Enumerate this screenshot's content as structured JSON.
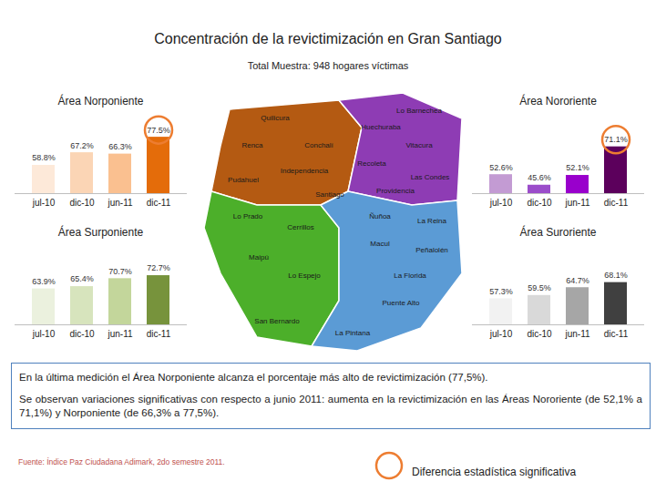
{
  "page": {
    "title": "Concentración de la revictimización en Gran Santiago",
    "subtitle": "Total Muestra: 948 hogares víctimas",
    "text": [
      "En la última medición el Área Norponiente alcanza el porcentaje más alto de revictimización (77,5%).",
      "Se observan variaciones significativas con respecto a junio 2011: aumenta en la revictimización en las Áreas Nororiente (de 52,1% a 71,1%) y Norponiente (de 66,3% a 77,5%)."
    ],
    "source": "Fuente: Índice Paz Ciudadana Adimark, 2do semestre 2011.",
    "legend_label": "Diferencia estadística significativa",
    "legend_color": "#ed7d31"
  },
  "map": {
    "zones": [
      {
        "color": "#b45a12",
        "comunas": [
          "Quilicura",
          "Renca",
          "Conchalí",
          "Pudahuel",
          "Independencia",
          "Santiago"
        ]
      },
      {
        "color": "#8e3cb4",
        "comunas": [
          "Lo Barnechea",
          "Huechuraba",
          "Vitacura",
          "Recoleta",
          "Las Condes",
          "Providencia"
        ]
      },
      {
        "color": "#4caf2a",
        "comunas": [
          "Lo Prado",
          "Cerrillos",
          "Maipú",
          "Lo Espejo",
          "San Bernardo"
        ]
      },
      {
        "color": "#5b9bd5",
        "comunas": [
          "Ñuñoa",
          "La Reina",
          "Macul",
          "Peñalolén",
          "La Florida",
          "Puente Alto",
          "La Pintana"
        ]
      }
    ]
  },
  "chart_data": [
    {
      "type": "bar",
      "title": "Área Norponiente",
      "categories": [
        "jul-10",
        "dic-10",
        "jun-11",
        "dic-11"
      ],
      "values": [
        58.8,
        67.2,
        66.3,
        77.5
      ],
      "value_labels": [
        "58.8%",
        "67.2%",
        "66.3%",
        "77.5%"
      ],
      "colors": [
        "#fde9d9",
        "#fbd5b5",
        "#fac090",
        "#e46c0a"
      ],
      "significant": [
        false,
        false,
        false,
        true
      ],
      "ylim": [
        40,
        80
      ],
      "data_labels": true,
      "tick_labels": "x"
    },
    {
      "type": "bar",
      "title": "Área Nororiente",
      "categories": [
        "jul-10",
        "dic-10",
        "jun-11",
        "dic-11"
      ],
      "values": [
        52.6,
        45.6,
        52.1,
        71.1
      ],
      "value_labels": [
        "52.6%",
        "45.6%",
        "52.1%",
        "71.1%"
      ],
      "colors": [
        "#c39bd3",
        "#9b4dca",
        "#9900cc",
        "#5c005c"
      ],
      "significant": [
        false,
        false,
        false,
        true
      ],
      "ylim": [
        40,
        80
      ],
      "data_labels": true,
      "tick_labels": "x"
    },
    {
      "type": "bar",
      "title": "Área Surponiente",
      "categories": [
        "jul-10",
        "dic-10",
        "jun-11",
        "dic-11"
      ],
      "values": [
        63.9,
        65.4,
        70.7,
        72.7
      ],
      "value_labels": [
        "63.9%",
        "65.4%",
        "70.7%",
        "72.7%"
      ],
      "colors": [
        "#ebf1de",
        "#d7e4bd",
        "#c3d69b",
        "#77933c"
      ],
      "significant": [
        false,
        false,
        false,
        false
      ],
      "ylim": [
        40,
        80
      ],
      "data_labels": true,
      "tick_labels": "x"
    },
    {
      "type": "bar",
      "title": "Área Suroriente",
      "categories": [
        "jul-10",
        "dic-10",
        "jun-11",
        "dic-11"
      ],
      "values": [
        57.3,
        59.5,
        64.7,
        68.1
      ],
      "value_labels": [
        "57.3%",
        "59.5%",
        "64.7%",
        "68.1%"
      ],
      "colors": [
        "#f2f2f2",
        "#d9d9d9",
        "#a6a6a6",
        "#404040"
      ],
      "significant": [
        false,
        false,
        false,
        false
      ],
      "ylim": [
        40,
        80
      ],
      "data_labels": true,
      "tick_labels": "x"
    }
  ]
}
